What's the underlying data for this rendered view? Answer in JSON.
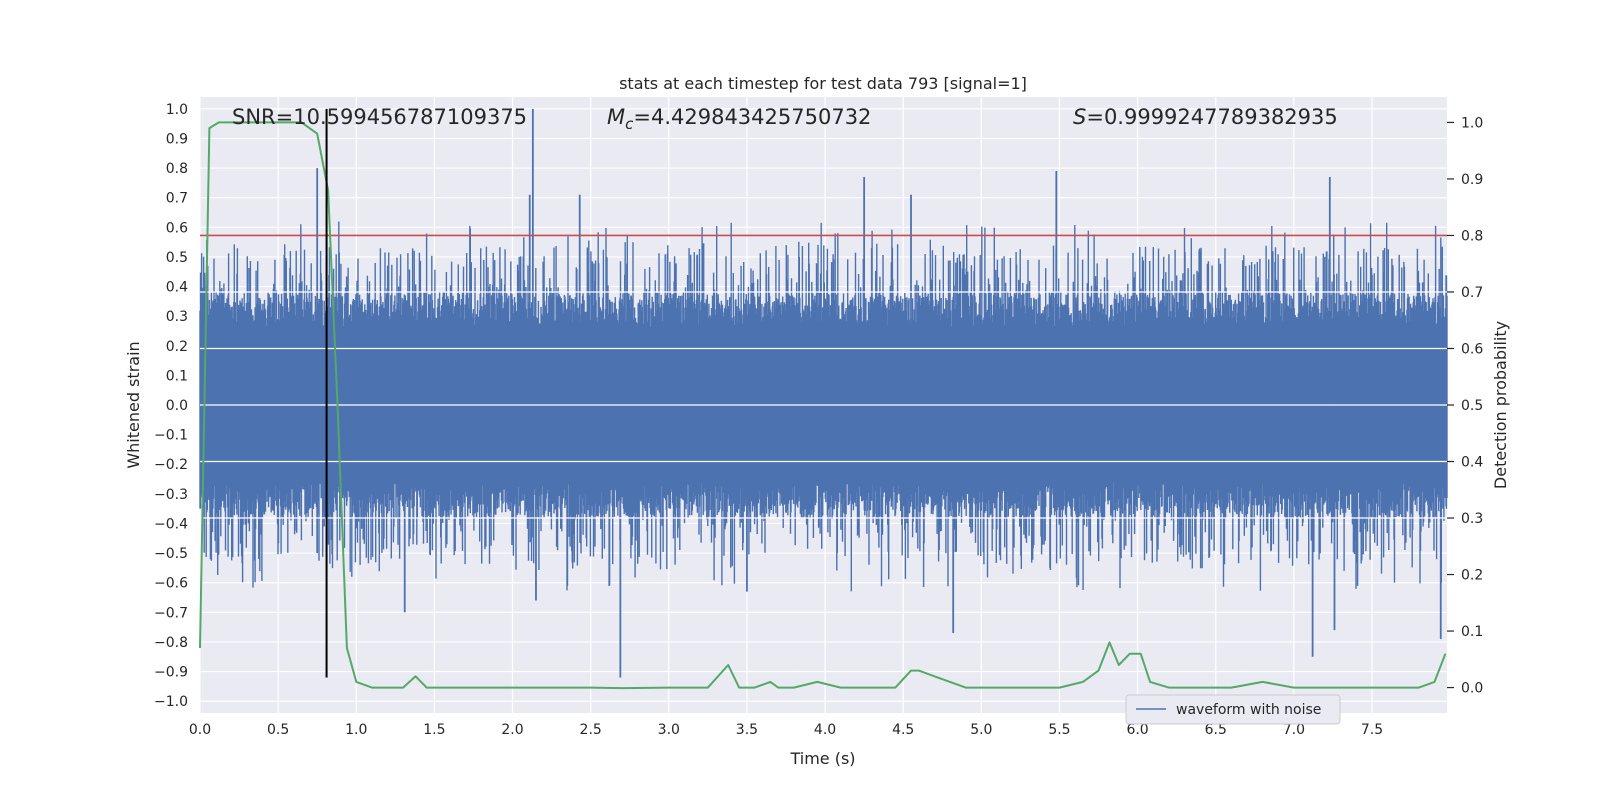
{
  "chart_data": {
    "type": "line",
    "title": "stats at each timestep for test data 793 [signal=1]",
    "xlabel": "Time (s)",
    "ylabel": "Whitened strain",
    "y2label": "Detection probability",
    "xlim": [
      0.0,
      7.98
    ],
    "ylim": [
      -1.04,
      1.04
    ],
    "y2lim": [
      -0.045,
      1.045
    ],
    "xticks": [
      0.0,
      0.5,
      1.0,
      1.5,
      2.0,
      2.5,
      3.0,
      3.5,
      4.0,
      4.5,
      5.0,
      5.5,
      6.0,
      6.5,
      7.0,
      7.5
    ],
    "xtick_labels": [
      "0.0",
      "0.5",
      "1.0",
      "1.5",
      "2.0",
      "2.5",
      "3.0",
      "3.5",
      "4.0",
      "4.5",
      "5.0",
      "5.5",
      "6.0",
      "6.5",
      "7.0",
      "7.5"
    ],
    "yticks": [
      -1.0,
      -0.9,
      -0.8,
      -0.7,
      -0.6,
      -0.5,
      -0.4,
      -0.3,
      -0.2,
      -0.1,
      0.0,
      0.1,
      0.2,
      0.3,
      0.4,
      0.5,
      0.6,
      0.7,
      0.8,
      0.9,
      1.0
    ],
    "ytick_labels": [
      "−1.0",
      "−0.9",
      "−0.8",
      "−0.7",
      "−0.6",
      "−0.5",
      "−0.4",
      "−0.3",
      "−0.2",
      "−0.1",
      "0.0",
      "0.1",
      "0.2",
      "0.3",
      "0.4",
      "0.5",
      "0.6",
      "0.7",
      "0.8",
      "0.9",
      "1.0"
    ],
    "y2ticks": [
      0.0,
      0.1,
      0.2,
      0.3,
      0.4,
      0.5,
      0.6,
      0.7,
      0.8,
      0.9,
      1.0
    ],
    "y2tick_labels": [
      "0.0",
      "0.1",
      "0.2",
      "0.3",
      "0.4",
      "0.5",
      "0.6",
      "0.7",
      "0.8",
      "0.9",
      "1.0"
    ],
    "annotations": {
      "snr": "SNR=10.599456787109375",
      "mc_symbol": "M",
      "mc_sub": "c",
      "mc_value": "=4.429843425750732",
      "s_symbol": "S",
      "s_value": "=0.9999247789382935"
    },
    "legend": {
      "position": "lower-right",
      "entries": [
        "waveform with noise"
      ]
    },
    "colors": {
      "waveform": "#4c72b0",
      "probability": "#55a868",
      "threshold": "#c44e52",
      "marker": "#000000",
      "plot_bg": "#eaeaf2",
      "grid": "#ffffff"
    },
    "threshold_prob": 0.8,
    "marker_time": 0.81,
    "marker_strain_range": [
      -0.92,
      1.0
    ],
    "series": [
      {
        "name": "waveform with noise",
        "envelope": "dense noise, core amplitude about ±0.3, spikes to 1.0 at 2.13 s and -0.92 at 2.69 s",
        "peaks": [
          {
            "t": 0.75,
            "v": 0.8
          },
          {
            "t": 2.11,
            "v": 0.71
          },
          {
            "t": 2.13,
            "v": 1.0
          },
          {
            "t": 2.43,
            "v": 0.71
          },
          {
            "t": 4.25,
            "v": 0.77
          },
          {
            "t": 4.55,
            "v": 0.71
          },
          {
            "t": 5.48,
            "v": 0.79
          },
          {
            "t": 7.23,
            "v": 0.77
          },
          {
            "t": 0.75,
            "v": -0.5
          },
          {
            "t": 1.31,
            "v": -0.7
          },
          {
            "t": 2.15,
            "v": -0.66
          },
          {
            "t": 2.69,
            "v": -0.92
          },
          {
            "t": 3.5,
            "v": -0.63
          },
          {
            "t": 4.82,
            "v": -0.77
          },
          {
            "t": 7.12,
            "v": -0.85
          },
          {
            "t": 7.26,
            "v": -0.76
          },
          {
            "t": 7.94,
            "v": -0.79
          }
        ]
      },
      {
        "name": "detection probability",
        "axis": "right",
        "x": [
          0.0,
          0.06,
          0.12,
          0.3,
          0.5,
          0.65,
          0.7,
          0.75,
          0.82,
          0.88,
          0.94,
          1.0,
          1.1,
          1.3,
          1.38,
          1.45,
          1.6,
          1.8,
          2.0,
          2.3,
          2.5,
          2.7,
          3.0,
          3.25,
          3.38,
          3.45,
          3.55,
          3.65,
          3.7,
          3.8,
          3.95,
          4.1,
          4.3,
          4.45,
          4.55,
          4.6,
          4.7,
          4.9,
          5.2,
          5.5,
          5.65,
          5.75,
          5.82,
          5.88,
          5.95,
          6.02,
          6.08,
          6.2,
          6.4,
          6.6,
          6.8,
          7.0,
          7.3,
          7.6,
          7.8,
          7.9,
          7.97
        ],
        "y": [
          0.07,
          0.99,
          1.0,
          1.0,
          1.0,
          1.0,
          0.99,
          0.98,
          0.88,
          0.5,
          0.07,
          0.01,
          0.0,
          0.0,
          0.02,
          0.0,
          0.0,
          0.0,
          0.0,
          0.0,
          0.0,
          -0.001,
          0.0,
          0.0,
          0.04,
          0.0,
          0.0,
          0.01,
          0.0,
          0.0,
          0.01,
          0.0,
          0.0,
          0.0,
          0.03,
          0.03,
          0.02,
          0.0,
          0.0,
          0.0,
          0.01,
          0.03,
          0.08,
          0.04,
          0.06,
          0.06,
          0.01,
          0.0,
          0.0,
          0.0,
          0.01,
          0.0,
          0.0,
          0.0,
          0.0,
          0.01,
          0.06
        ]
      }
    ]
  }
}
